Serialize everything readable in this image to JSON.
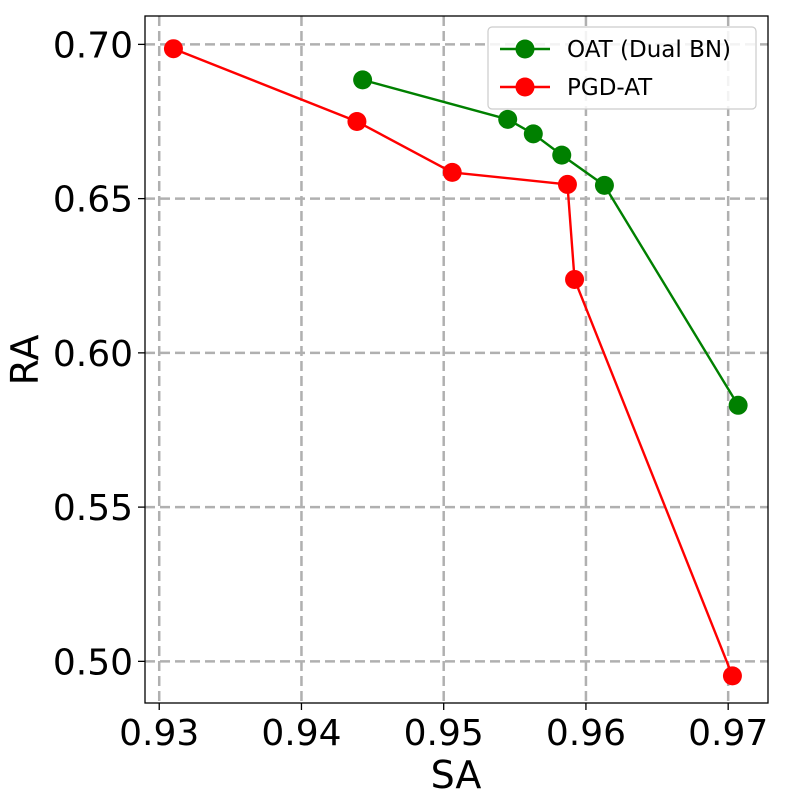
{
  "chart_data": {
    "type": "line",
    "xlabel": "SA",
    "ylabel": "RA",
    "xlim": [
      0.929,
      0.9728
    ],
    "ylim": [
      0.4865,
      0.7092
    ],
    "xticks": [
      0.93,
      0.94,
      0.95,
      0.96,
      0.97
    ],
    "xtick_labels": [
      "0.93",
      "0.94",
      "0.95",
      "0.96",
      "0.97"
    ],
    "yticks": [
      0.5,
      0.55,
      0.6,
      0.65,
      0.7
    ],
    "ytick_labels": [
      "0.50",
      "0.55",
      "0.60",
      "0.65",
      "0.70"
    ],
    "grid": true,
    "legend_position": "top-right",
    "series": [
      {
        "name": "OAT (Dual BN)",
        "color": "#008000",
        "marker": "circle",
        "x": [
          0.9443,
          0.9545,
          0.9563,
          0.9583,
          0.9613,
          0.9707
        ],
        "y": [
          0.6885,
          0.6757,
          0.671,
          0.6641,
          0.6543,
          0.583
        ]
      },
      {
        "name": "PGD-AT",
        "color": "#ff0000",
        "marker": "circle",
        "x": [
          0.931,
          0.9439,
          0.9506,
          0.9587,
          0.9592,
          0.9703
        ],
        "y": [
          0.6986,
          0.675,
          0.6585,
          0.6546,
          0.6238,
          0.4953
        ]
      }
    ]
  }
}
